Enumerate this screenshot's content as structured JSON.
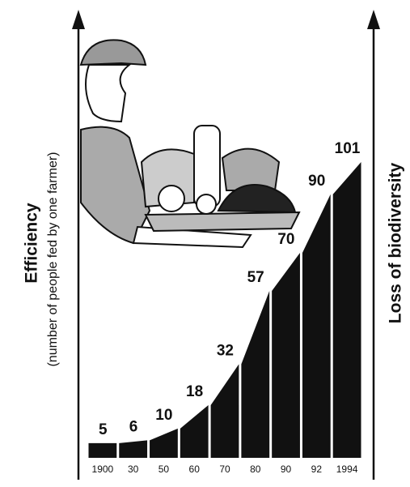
{
  "chart_data": {
    "type": "bar",
    "y_label": "Efficiency",
    "y_sublabel": "(number of people fed by one farmer)",
    "y2_label": "Loss of biodiversity",
    "categories": [
      "1900",
      "30",
      "50",
      "60",
      "70",
      "80",
      "90",
      "92",
      "1994"
    ],
    "values": [
      5,
      6,
      10,
      18,
      32,
      57,
      70,
      90,
      101
    ],
    "color": "#111111"
  }
}
